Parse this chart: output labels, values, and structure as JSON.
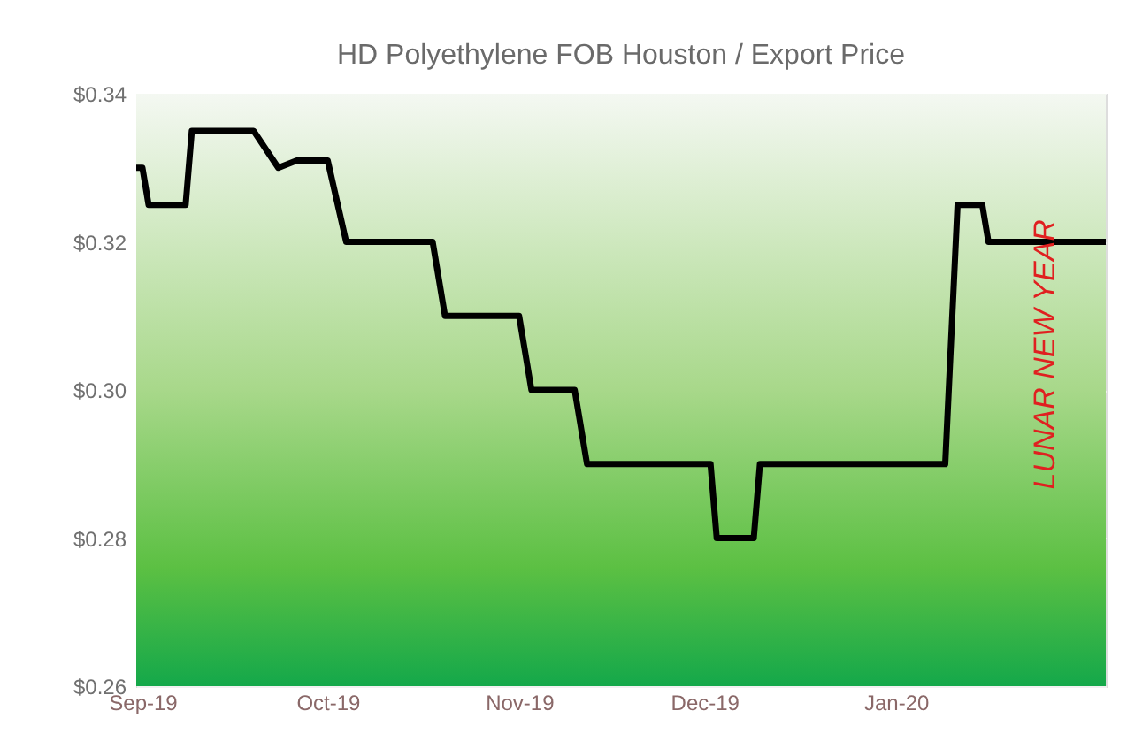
{
  "chart_data": {
    "type": "line",
    "title": "HD Polyethylene FOB Houston / Export Price",
    "x": [
      "2019-08-31",
      "2019-09-01",
      "2019-09-02",
      "2019-09-08",
      "2019-09-09",
      "2019-09-19",
      "2019-09-23",
      "2019-09-26",
      "2019-10-01",
      "2019-10-04",
      "2019-10-18",
      "2019-10-20",
      "2019-11-01",
      "2019-11-03",
      "2019-11-10",
      "2019-11-12",
      "2019-12-02",
      "2019-12-03",
      "2019-12-09",
      "2019-12-10",
      "2020-01-09",
      "2020-01-11",
      "2020-01-15",
      "2020-01-16",
      "2020-02-04"
    ],
    "series": [
      {
        "color": "#000000",
        "values": [
          0.33,
          0.33,
          0.325,
          0.325,
          0.335,
          0.335,
          0.33,
          0.331,
          0.331,
          0.32,
          0.32,
          0.31,
          0.31,
          0.3,
          0.3,
          0.29,
          0.29,
          0.28,
          0.28,
          0.29,
          0.29,
          0.325,
          0.325,
          0.32,
          0.32
        ]
      }
    ],
    "xlim": [
      "2019-08-31",
      "2020-02-04"
    ],
    "xticks": [
      {
        "value": "2019-09-01",
        "label": "Sep-19"
      },
      {
        "value": "2019-10-01",
        "label": "Oct-19"
      },
      {
        "value": "2019-11-01",
        "label": "Nov-19"
      },
      {
        "value": "2019-12-01",
        "label": "Dec-19"
      },
      {
        "value": "2020-01-01",
        "label": "Jan-20"
      }
    ],
    "ylim": [
      0.26,
      0.34
    ],
    "yticks": [
      {
        "value": 0.26,
        "label": "$0.26"
      },
      {
        "value": 0.28,
        "label": "$0.28"
      },
      {
        "value": 0.3,
        "label": "$0.30"
      },
      {
        "value": 0.32,
        "label": "$0.32"
      },
      {
        "value": 0.34,
        "label": "$0.34"
      }
    ],
    "grid": "y",
    "line_style": "solid",
    "marker": "none",
    "annotations": [
      "LUNAR NEW YEAR"
    ]
  }
}
